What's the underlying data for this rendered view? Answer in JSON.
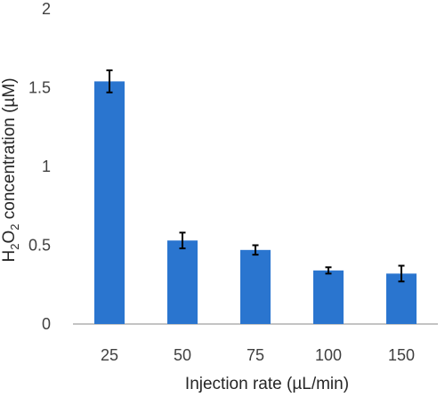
{
  "chart_data": {
    "type": "bar",
    "categories": [
      "25",
      "50",
      "75",
      "100",
      "150"
    ],
    "values": [
      1.54,
      0.53,
      0.47,
      0.34,
      0.32
    ],
    "errors": [
      0.07,
      0.05,
      0.03,
      0.02,
      0.05
    ],
    "ylim": [
      0,
      2
    ],
    "yticks": [
      0,
      0.5,
      1,
      1.5,
      2
    ],
    "ytick_labels": [
      "0",
      "0.5",
      "1",
      "1.5",
      "2"
    ],
    "xlabel": "Injection rate (µL/min)",
    "ylabel": {
      "prefix": "H",
      "sub1": "2",
      "mid": "O",
      "sub2": "2",
      "suffix": " concentration (µM)"
    },
    "grid": false,
    "bar_color": "#2a75cf",
    "error_color": "#000000"
  }
}
